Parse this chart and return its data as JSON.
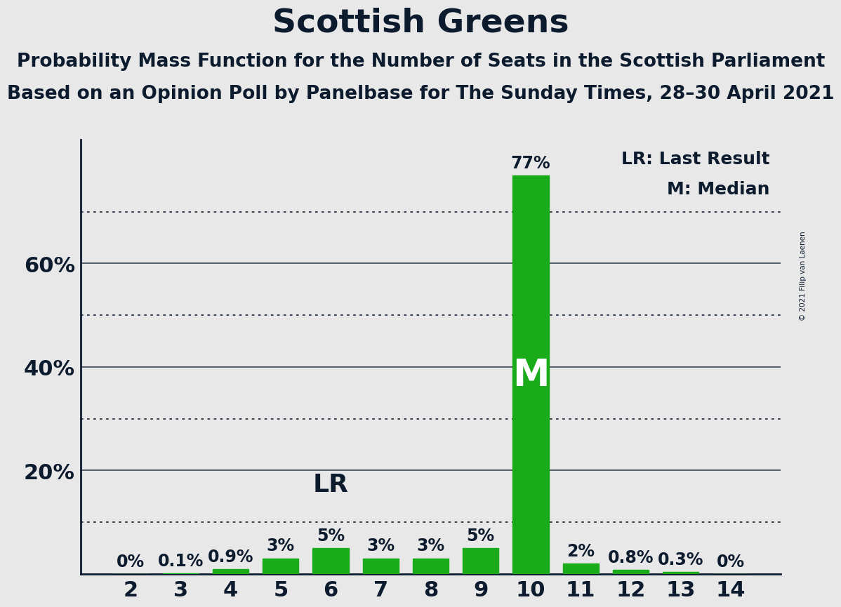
{
  "title": "Scottish Greens",
  "subtitle1": "Probability Mass Function for the Number of Seats in the Scottish Parliament",
  "subtitle2": "Based on an Opinion Poll by Panelbase for The Sunday Times, 28–30 April 2021",
  "copyright": "© 2021 Filip van Laenen",
  "seats": [
    2,
    3,
    4,
    5,
    6,
    7,
    8,
    9,
    10,
    11,
    12,
    13,
    14
  ],
  "probabilities": [
    0.0,
    0.1,
    0.9,
    3.0,
    5.0,
    3.0,
    3.0,
    5.0,
    77.0,
    2.0,
    0.8,
    0.3,
    0.0
  ],
  "bar_color": "#1aab1a",
  "background_color": "#e8e8e8",
  "dotted_lines": [
    10,
    30,
    50,
    70
  ],
  "solid_lines": [
    20,
    40,
    60
  ],
  "ylim": [
    0,
    84
  ],
  "lr_seat": 6,
  "median_seat": 10,
  "legend_lr": "LR: Last Result",
  "legend_m": "M: Median",
  "title_fontsize": 34,
  "subtitle_fontsize": 19,
  "text_color": "#0d1b2e",
  "bar_label_fontsize": 17,
  "ytick_fontsize": 22,
  "xtick_fontsize": 22
}
